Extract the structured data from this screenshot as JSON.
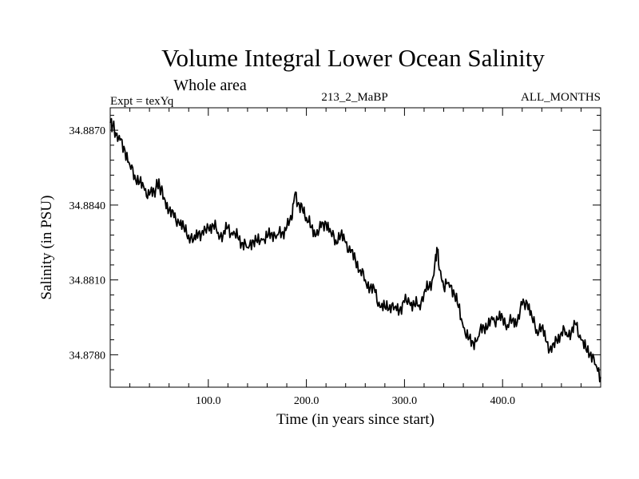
{
  "chart_data": {
    "type": "line",
    "title": "Volume Integral Lower Ocean Salinity",
    "subtitle": "Whole area",
    "left_label": "Expt = texYq",
    "center_label": "213_2_MaBP",
    "right_label": "ALL_MONTHS",
    "xlabel": "Time (in years since start)",
    "ylabel": "Salinity (in PSU)",
    "xlim": [
      0,
      500
    ],
    "ylim": [
      34.8767,
      34.8879
    ],
    "xticks": [
      100,
      200,
      300,
      400
    ],
    "xtick_labels": [
      "100.0",
      "200.0",
      "300.0",
      "400.0"
    ],
    "yticks": [
      34.878,
      34.881,
      34.884,
      34.887
    ],
    "ytick_labels": [
      "34.8780",
      "34.8810",
      "34.8840",
      "34.8870"
    ],
    "grid": false,
    "series": [
      {
        "color": "#000000",
        "x": [
          0,
          3,
          6,
          10,
          15,
          20,
          25,
          30,
          35,
          40,
          45,
          48,
          52,
          55,
          60,
          65,
          70,
          75,
          80,
          85,
          90,
          95,
          100,
          105,
          110,
          115,
          120,
          125,
          130,
          135,
          140,
          145,
          150,
          155,
          160,
          165,
          170,
          175,
          180,
          185,
          188,
          192,
          196,
          200,
          205,
          210,
          215,
          220,
          225,
          230,
          235,
          240,
          245,
          250,
          255,
          260,
          265,
          270,
          275,
          280,
          285,
          290,
          295,
          300,
          305,
          310,
          315,
          320,
          325,
          330,
          333,
          336,
          340,
          345,
          350,
          355,
          360,
          365,
          370,
          375,
          380,
          385,
          390,
          395,
          400,
          405,
          410,
          415,
          420,
          425,
          430,
          435,
          440,
          445,
          450,
          455,
          460,
          465,
          470,
          475,
          480,
          485,
          490,
          495,
          500
        ],
        "y": [
          34.8873,
          34.8872,
          34.8868,
          34.8866,
          34.8862,
          34.8856,
          34.8852,
          34.8849,
          34.8846,
          34.8844,
          34.8845,
          34.8848,
          34.8847,
          34.8843,
          34.8838,
          34.8835,
          34.8833,
          34.8831,
          34.8828,
          34.8826,
          34.8829,
          34.8828,
          34.8831,
          34.8832,
          34.8829,
          34.8828,
          34.8831,
          34.8828,
          34.8827,
          34.8825,
          34.8823,
          34.8826,
          34.8825,
          34.8826,
          34.8827,
          34.8829,
          34.8828,
          34.8829,
          34.8831,
          34.8834,
          34.8844,
          34.8841,
          34.8838,
          34.8835,
          34.8831,
          34.8828,
          34.8831,
          34.8833,
          34.8829,
          34.8826,
          34.8828,
          34.8825,
          34.8821,
          34.8818,
          34.8814,
          34.881,
          34.8807,
          34.8805,
          34.8799,
          34.8799,
          34.88,
          34.8799,
          34.8798,
          34.8801,
          34.8801,
          34.88,
          34.88,
          34.8805,
          34.8807,
          34.8812,
          34.8823,
          34.8814,
          34.8807,
          34.8809,
          34.8806,
          34.8799,
          34.8791,
          34.8786,
          34.8785,
          34.8787,
          34.8792,
          34.8791,
          34.8794,
          34.8794,
          34.8795,
          34.8792,
          34.8794,
          34.8793,
          34.88,
          34.8801,
          34.8795,
          34.879,
          34.8791,
          34.8785,
          34.8781,
          34.8786,
          34.8789,
          34.8789,
          34.8789,
          34.8792,
          34.8786,
          34.8782,
          34.8781,
          34.8776,
          34.8771
        ]
      }
    ]
  }
}
